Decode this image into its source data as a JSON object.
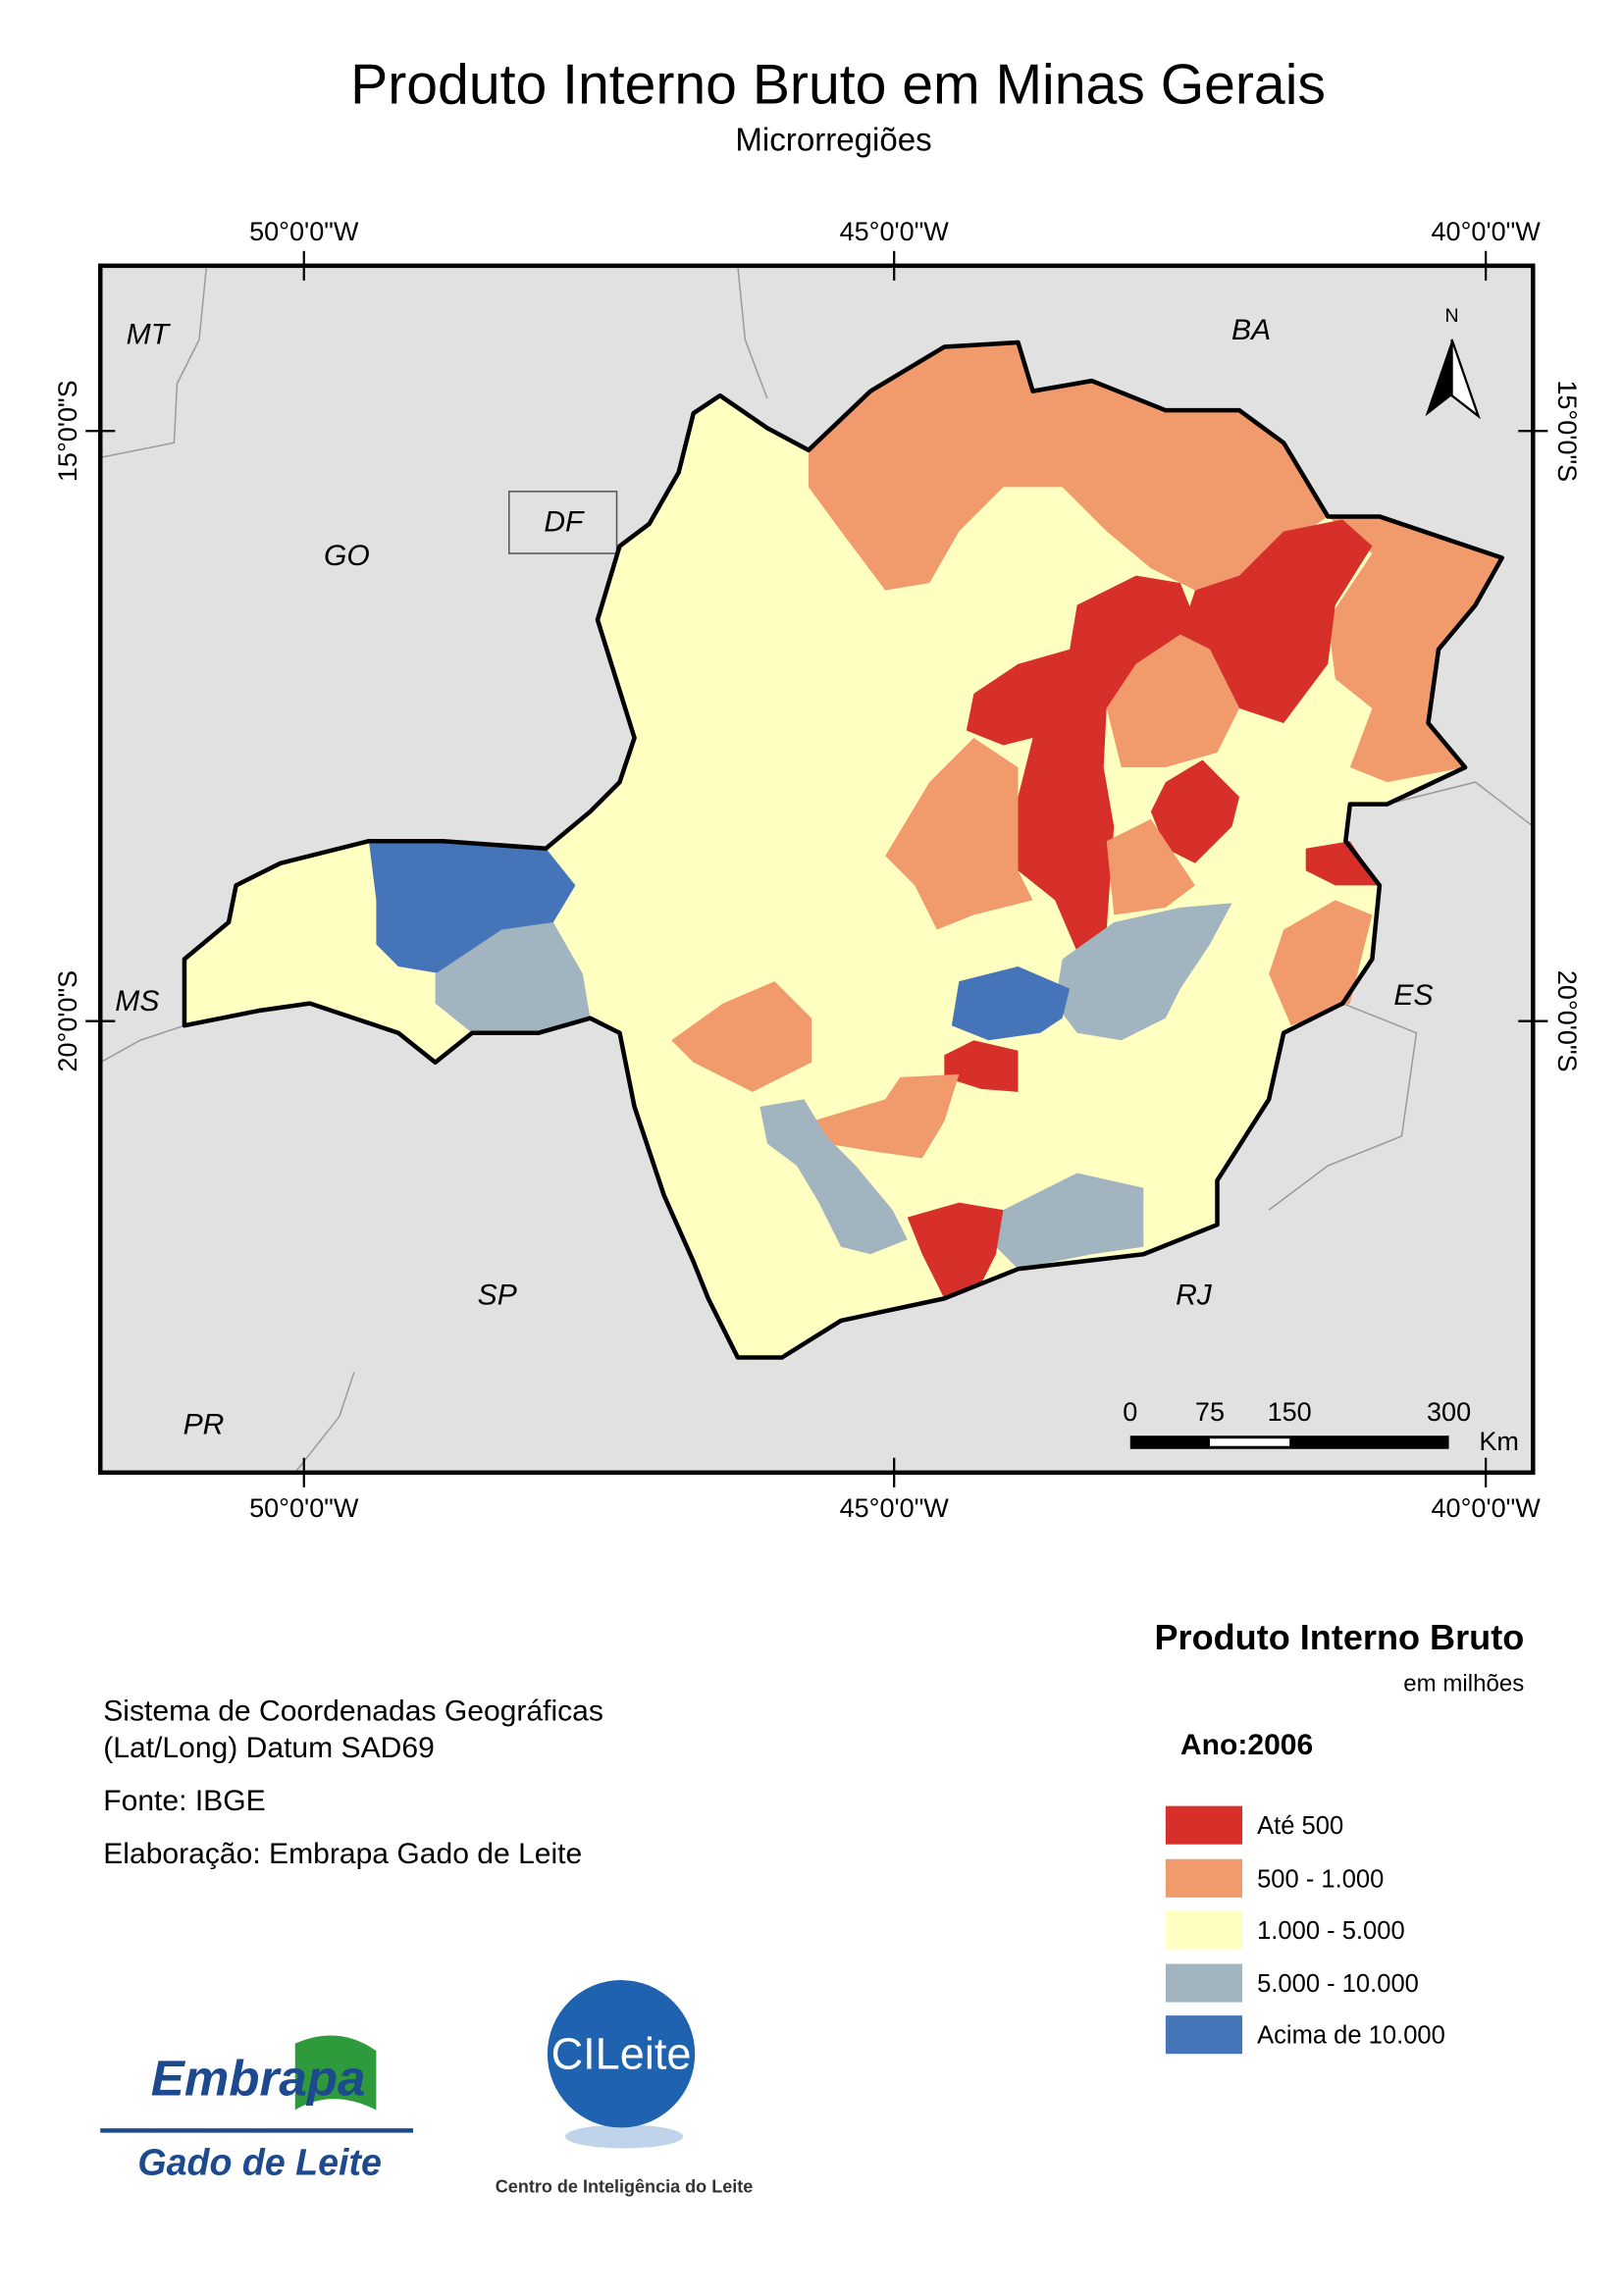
{
  "header": {
    "title": "Produto Interno Bruto em Minas Gerais",
    "subtitle": "Microrregiões"
  },
  "map": {
    "longitudes": [
      "50°0'0\"W",
      "45°0'0\"W",
      "40°0'0\"W"
    ],
    "latitudes": [
      "15°0'0\"S",
      "20°0'0\"S"
    ],
    "state_labels": [
      "MT",
      "GO",
      "DF",
      "BA",
      "MS",
      "ES",
      "SP",
      "RJ",
      "PR"
    ],
    "north": "N",
    "scale_bar": {
      "ticks": [
        "0",
        "75",
        "150",
        "300"
      ],
      "unit": "Km"
    }
  },
  "legend": {
    "title": "Produto Interno Bruto",
    "unit": "em milhões",
    "year": "Ano:2006",
    "classes": [
      {
        "label": "Até 500",
        "color": "#d7302b"
      },
      {
        "label": "500 - 1.000",
        "color": "#f19a6c"
      },
      {
        "label": "1.000 - 5.000",
        "color": "#ffffc2"
      },
      {
        "label": "5.000 - 10.000",
        "color": "#a3b4c1"
      },
      {
        "label": "Acima de 10.000",
        "color": "#4674b8"
      }
    ]
  },
  "notes": [
    "Sistema de Coordenadas Geográficas",
    "(Lat/Long) Datum SAD69",
    "Fonte: IBGE",
    "Elaboração: Embrapa Gado de Leite"
  ],
  "logos": {
    "embrapa": "Embrapa",
    "embrapa_unit": "Gado de Leite",
    "cileite": "CILeite",
    "cileite_caption": "Centro de Inteligência do Leite"
  }
}
